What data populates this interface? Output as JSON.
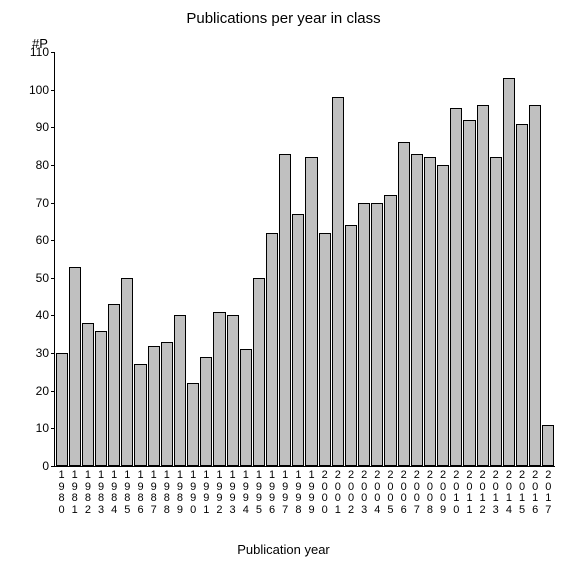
{
  "chart": {
    "type": "bar",
    "title": "Publications per year in class",
    "title_fontsize": 15,
    "y_axis_label": "#P",
    "x_axis_label": "Publication year",
    "label_fontsize": 13,
    "ylim": [
      0,
      110
    ],
    "ytick_step": 10,
    "yticks": [
      0,
      10,
      20,
      30,
      40,
      50,
      60,
      70,
      80,
      90,
      100,
      110
    ],
    "background_color": "#ffffff",
    "bar_color": "#c0c0c0",
    "bar_border_color": "#000000",
    "axis_color": "#000000",
    "text_color": "#000000",
    "categories": [
      "1980",
      "1981",
      "1982",
      "1983",
      "1984",
      "1985",
      "1986",
      "1987",
      "1988",
      "1989",
      "1990",
      "1991",
      "1992",
      "1993",
      "1994",
      "1995",
      "1996",
      "1997",
      "1998",
      "1999",
      "2000",
      "2001",
      "2002",
      "2003",
      "2004",
      "2005",
      "2006",
      "2007",
      "2008",
      "2009",
      "2010",
      "2011",
      "2012",
      "2013",
      "2014",
      "2015",
      "2016",
      "2017"
    ],
    "values": [
      30,
      53,
      38,
      36,
      43,
      50,
      27,
      32,
      33,
      40,
      22,
      29,
      41,
      40,
      31,
      50,
      62,
      83,
      67,
      82,
      62,
      98,
      64,
      70,
      70,
      72,
      86,
      83,
      82,
      80,
      95,
      92,
      96,
      82,
      103,
      91,
      96,
      11
    ]
  }
}
